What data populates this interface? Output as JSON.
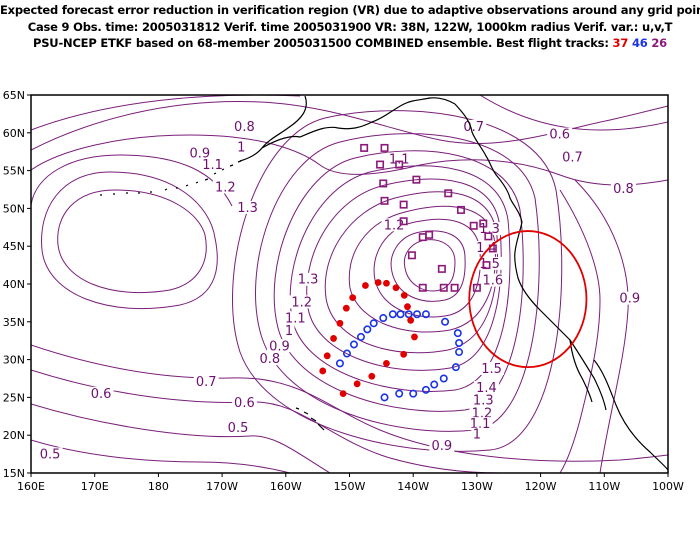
{
  "header": {
    "line1": "Expected forecast error reduction in verification region (VR) due to adaptive observations around any grid point.",
    "line2": "Case 9   Obs. time: 2005031812   Verif. time 2005031900   VR: 38N, 122W, 1000km radius   Verif. var.: u,v,T",
    "line3_prefix": "PSU-NCEP ETKF based on 68-member 2005031500 COMBINED ensemble.   Best flight tracks: ",
    "track_red": "37",
    "track_blue": "46",
    "track_purple": "26"
  },
  "colors": {
    "contour": "#7a1e7a",
    "red_track": "#e00000",
    "blue_track": "#1a33e6",
    "purple_track": "#8b1a7a",
    "verification_circle": "#e00000",
    "coastline": "#000000"
  },
  "map": {
    "lon_range": [
      160,
      260
    ],
    "lat_range": [
      15,
      65
    ],
    "lon_ticks": [
      {
        "lon": 160,
        "label": "160E"
      },
      {
        "lon": 170,
        "label": "170E"
      },
      {
        "lon": 180,
        "label": "180"
      },
      {
        "lon": 190,
        "label": "170W"
      },
      {
        "lon": 200,
        "label": "160W"
      },
      {
        "lon": 210,
        "label": "150W"
      },
      {
        "lon": 220,
        "label": "140W"
      },
      {
        "lon": 230,
        "label": "130W"
      },
      {
        "lon": 240,
        "label": "120W"
      },
      {
        "lon": 250,
        "label": "110W"
      },
      {
        "lon": 260,
        "label": "100W"
      }
    ],
    "lat_ticks": [
      {
        "lat": 15,
        "label": "15N"
      },
      {
        "lat": 20,
        "label": "20N"
      },
      {
        "lat": 25,
        "label": "25N"
      },
      {
        "lat": 30,
        "label": "30N"
      },
      {
        "lat": 35,
        "label": "35N"
      },
      {
        "lat": 40,
        "label": "40N"
      },
      {
        "lat": 45,
        "label": "45N"
      },
      {
        "lat": 50,
        "label": "50N"
      },
      {
        "lat": 55,
        "label": "55N"
      },
      {
        "lat": 60,
        "label": "60N"
      },
      {
        "lat": 65,
        "label": "65N"
      }
    ],
    "verification_region": {
      "lat": 38,
      "lon": 238,
      "radius_deg_lat": 9,
      "radius_deg_lon": 9.2
    },
    "contour_labels": [
      {
        "text": "0.8",
        "lon": 193.5,
        "lat": 60.5
      },
      {
        "text": "0.7",
        "lon": 229.5,
        "lat": 60.5
      },
      {
        "text": "0.6",
        "lon": 243,
        "lat": 59.5
      },
      {
        "text": "0.7",
        "lon": 245,
        "lat": 56.5
      },
      {
        "text": "0.8",
        "lon": 253,
        "lat": 52.3
      },
      {
        "text": "0.9",
        "lon": 186.5,
        "lat": 57
      },
      {
        "text": "1",
        "lon": 193,
        "lat": 57.8
      },
      {
        "text": "1.1",
        "lon": 188.5,
        "lat": 55.5
      },
      {
        "text": "1.1",
        "lon": 217.8,
        "lat": 56.2
      },
      {
        "text": "1.2",
        "lon": 190.5,
        "lat": 52.5
      },
      {
        "text": "1.3",
        "lon": 194,
        "lat": 49.8
      },
      {
        "text": "1.2",
        "lon": 217,
        "lat": 47.5
      },
      {
        "text": "1.3",
        "lon": 232,
        "lat": 47
      },
      {
        "text": "1.4",
        "lon": 231.5,
        "lat": 44.5
      },
      {
        "text": "1.5",
        "lon": 232,
        "lat": 42.4
      },
      {
        "text": "1.6",
        "lon": 232.5,
        "lat": 40.2
      },
      {
        "text": "1.3",
        "lon": 203.5,
        "lat": 40.3
      },
      {
        "text": "1.2",
        "lon": 202.5,
        "lat": 37.3
      },
      {
        "text": "1.1",
        "lon": 201.5,
        "lat": 35.2
      },
      {
        "text": "1",
        "lon": 200.5,
        "lat": 33.5
      },
      {
        "text": "0.9",
        "lon": 199,
        "lat": 31.5
      },
      {
        "text": "0.8",
        "lon": 197.5,
        "lat": 29.8
      },
      {
        "text": "0.7",
        "lon": 187.5,
        "lat": 26.8
      },
      {
        "text": "0.6",
        "lon": 171,
        "lat": 25.2
      },
      {
        "text": "0.6",
        "lon": 193.5,
        "lat": 24
      },
      {
        "text": "0.5",
        "lon": 192.5,
        "lat": 20.7
      },
      {
        "text": "0.5",
        "lon": 163,
        "lat": 17.2
      },
      {
        "text": "0.9",
        "lon": 254,
        "lat": 37.8
      },
      {
        "text": "1.5",
        "lon": 232.3,
        "lat": 28.5
      },
      {
        "text": "1.4",
        "lon": 231.5,
        "lat": 26
      },
      {
        "text": "1.3",
        "lon": 231,
        "lat": 24.3
      },
      {
        "text": "1.2",
        "lon": 230.8,
        "lat": 22.6
      },
      {
        "text": "1.1",
        "lon": 230.5,
        "lat": 21.2
      },
      {
        "text": "1",
        "lon": 230,
        "lat": 19.8
      },
      {
        "text": "0.9",
        "lon": 224.5,
        "lat": 18.3
      }
    ],
    "red_track": [
      {
        "lon": 205.8,
        "lat": 28.5
      },
      {
        "lon": 206.5,
        "lat": 30.5
      },
      {
        "lon": 207.5,
        "lat": 32.8
      },
      {
        "lon": 208.5,
        "lat": 34.8
      },
      {
        "lon": 209.5,
        "lat": 36.8
      },
      {
        "lon": 210.5,
        "lat": 38.2
      },
      {
        "lon": 212.5,
        "lat": 39.8
      },
      {
        "lon": 214.5,
        "lat": 40.2
      },
      {
        "lon": 215.8,
        "lat": 40.1
      },
      {
        "lon": 217.3,
        "lat": 39.5
      },
      {
        "lon": 218.6,
        "lat": 38.5
      },
      {
        "lon": 219.1,
        "lat": 37
      },
      {
        "lon": 219.6,
        "lat": 35.2
      },
      {
        "lon": 220.2,
        "lat": 33
      },
      {
        "lon": 218.5,
        "lat": 30.7
      },
      {
        "lon": 215.8,
        "lat": 29.5
      },
      {
        "lon": 213.5,
        "lat": 27.8
      },
      {
        "lon": 211.2,
        "lat": 26.8
      },
      {
        "lon": 209,
        "lat": 25.5
      }
    ],
    "blue_track": [
      {
        "lon": 208.5,
        "lat": 29.5
      },
      {
        "lon": 209.6,
        "lat": 30.8
      },
      {
        "lon": 210.7,
        "lat": 32
      },
      {
        "lon": 211.8,
        "lat": 33
      },
      {
        "lon": 212.8,
        "lat": 34
      },
      {
        "lon": 213.8,
        "lat": 34.8
      },
      {
        "lon": 215.3,
        "lat": 35.5
      },
      {
        "lon": 216.8,
        "lat": 36
      },
      {
        "lon": 218,
        "lat": 36
      },
      {
        "lon": 219.3,
        "lat": 36
      },
      {
        "lon": 220.6,
        "lat": 36
      },
      {
        "lon": 222,
        "lat": 36
      },
      {
        "lon": 225,
        "lat": 35
      },
      {
        "lon": 227,
        "lat": 33.5
      },
      {
        "lon": 227.2,
        "lat": 32.2
      },
      {
        "lon": 227.2,
        "lat": 31
      },
      {
        "lon": 226.7,
        "lat": 29
      },
      {
        "lon": 224.8,
        "lat": 27.5
      },
      {
        "lon": 223.3,
        "lat": 26.7
      },
      {
        "lon": 222,
        "lat": 26
      },
      {
        "lon": 220,
        "lat": 25.5
      },
      {
        "lon": 217.8,
        "lat": 25.5
      },
      {
        "lon": 215.5,
        "lat": 25
      }
    ],
    "purple_track": [
      {
        "lon": 212.3,
        "lat": 58
      },
      {
        "lon": 215.5,
        "lat": 58
      },
      {
        "lon": 214.8,
        "lat": 55.8
      },
      {
        "lon": 217.8,
        "lat": 55.8
      },
      {
        "lon": 215.3,
        "lat": 53.3
      },
      {
        "lon": 220.5,
        "lat": 53.8
      },
      {
        "lon": 225.5,
        "lat": 52
      },
      {
        "lon": 215.5,
        "lat": 51
      },
      {
        "lon": 218.5,
        "lat": 50.5
      },
      {
        "lon": 227.5,
        "lat": 49.8
      },
      {
        "lon": 218.5,
        "lat": 48.3
      },
      {
        "lon": 231,
        "lat": 48
      },
      {
        "lon": 221.5,
        "lat": 46.2
      },
      {
        "lon": 229.5,
        "lat": 47.7
      },
      {
        "lon": 231.8,
        "lat": 46.3
      },
      {
        "lon": 232.5,
        "lat": 44.7
      },
      {
        "lon": 219.8,
        "lat": 43.8
      },
      {
        "lon": 224.5,
        "lat": 42
      },
      {
        "lon": 224.8,
        "lat": 39.5
      },
      {
        "lon": 221.5,
        "lat": 39.5
      },
      {
        "lon": 226.5,
        "lat": 39.5
      },
      {
        "lon": 231.5,
        "lat": 42.5
      },
      {
        "lon": 230,
        "lat": 39.5
      },
      {
        "lon": 222.5,
        "lat": 46.5
      }
    ]
  }
}
